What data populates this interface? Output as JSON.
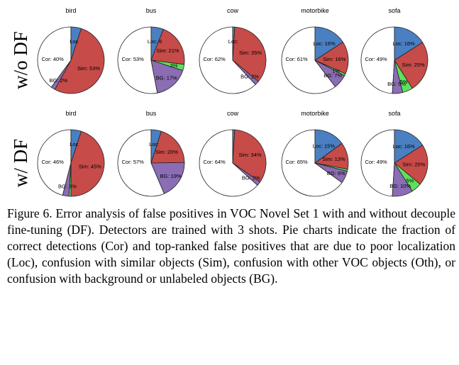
{
  "colors": {
    "Cor": "#ffffff",
    "Loc": "#4a7fc1",
    "Sim": "#c74b48",
    "Oth": "#5ee05e",
    "BG": "#8a6db4"
  },
  "chart_data": {
    "type": "pie",
    "slice_order": [
      "Cor",
      "Loc",
      "Sim",
      "Oth",
      "BG"
    ],
    "rows": [
      {
        "label": "w/o DF",
        "charts": [
          {
            "title": "bird",
            "values": {
              "Cor": 40,
              "Loc": 5,
              "Sim": 53,
              "Oth": 0,
              "BG": 2
            },
            "labels": {
              "Cor": "Cor: 40%",
              "Loc": "Loc",
              "Sim": "Sim: 53%",
              "BG": "BG: 2%"
            }
          },
          {
            "title": "bus",
            "values": {
              "Cor": 53,
              "Loc": 6,
              "Sim": 21,
              "Oth": 3,
              "BG": 17
            },
            "labels": {
              "Cor": "Cor: 53%",
              "Loc": "Loc: 6",
              "Sim": "Sim: 21%",
              "Oth": "3%",
              "BG": "BG: 17%"
            }
          },
          {
            "title": "cow",
            "values": {
              "Cor": 62,
              "Loc": 1,
              "Sim": 35,
              "Oth": 0,
              "BG": 2
            },
            "labels": {
              "Cor": "Cor: 62%",
              "Loc": "Loc:",
              "Sim": "Sim: 35%",
              "BG": "BG: 2%"
            }
          },
          {
            "title": "motorbike",
            "values": {
              "Cor": 61,
              "Loc": 16,
              "Sim": 16,
              "Oth": 1,
              "BG": 7
            },
            "labels": {
              "Cor": "Cor: 61%",
              "Loc": "Loc: 16%",
              "Sim": "Sim: 16%",
              "Oth": "1%",
              "BG": "BG: 7%"
            }
          },
          {
            "title": "sofa",
            "values": {
              "Cor": 49,
              "Loc": 16,
              "Sim": 25,
              "Oth": 5,
              "BG": 5
            },
            "labels": {
              "Cor": "Cor: 49%",
              "Loc": "Loc: 16%",
              "Sim": "Sim: 25%",
              "Oth": "5%",
              "BG": "BG: 5%"
            }
          }
        ]
      },
      {
        "label": "w/ DF",
        "charts": [
          {
            "title": "bird",
            "values": {
              "Cor": 46,
              "Loc": 5,
              "Sim": 45,
              "Oth": 1,
              "BG": 3
            },
            "labels": {
              "Cor": "Cor: 46%",
              "Loc": "Loc",
              "Sim": "Sim: 45%",
              "BG": "BG: 3%"
            }
          },
          {
            "title": "bus",
            "values": {
              "Cor": 57,
              "Loc": 5,
              "Sim": 20,
              "Oth": 0,
              "BG": 19
            },
            "labels": {
              "Cor": "Cor: 57%",
              "Loc": "Loc:",
              "Sim": "Sim: 20%",
              "BG": "BG: 19%"
            }
          },
          {
            "title": "cow",
            "values": {
              "Cor": 64,
              "Loc": 1,
              "Sim": 34,
              "Oth": 0,
              "BG": 2
            },
            "labels": {
              "Cor": "Cor: 64%",
              "Sim": "Sim: 34%",
              "BG": "BG: 2%"
            }
          },
          {
            "title": "motorbike",
            "values": {
              "Cor": 65,
              "Loc": 15,
              "Sim": 13,
              "Oth": 1,
              "BG": 6
            },
            "labels": {
              "Cor": "Cor: 65%",
              "Loc": "Loc: 15%",
              "Sim": "Sim: 13%",
              "BG": "BG: 6%"
            }
          },
          {
            "title": "sofa",
            "values": {
              "Cor": 49,
              "Loc": 16,
              "Sim": 20,
              "Oth": 5,
              "BG": 10
            },
            "labels": {
              "Cor": "Cor: 49%",
              "Loc": "Loc: 16%",
              "Sim": "Sim: 20%",
              "Oth": "5%",
              "BG": "BG: 10%"
            }
          }
        ]
      }
    ]
  },
  "caption": "Figure 6. Error analysis of false positives in VOC Novel Set 1 with and without decouple fine-tuning (DF). Detectors are trained with 3 shots. Pie charts indicate the fraction of correct detections (Cor) and top-ranked false positives that are due to poor localization (Loc), confusion with similar objects (Sim), confusion with other VOC objects (Oth), or confusion with background or unlabeled objects (BG)."
}
